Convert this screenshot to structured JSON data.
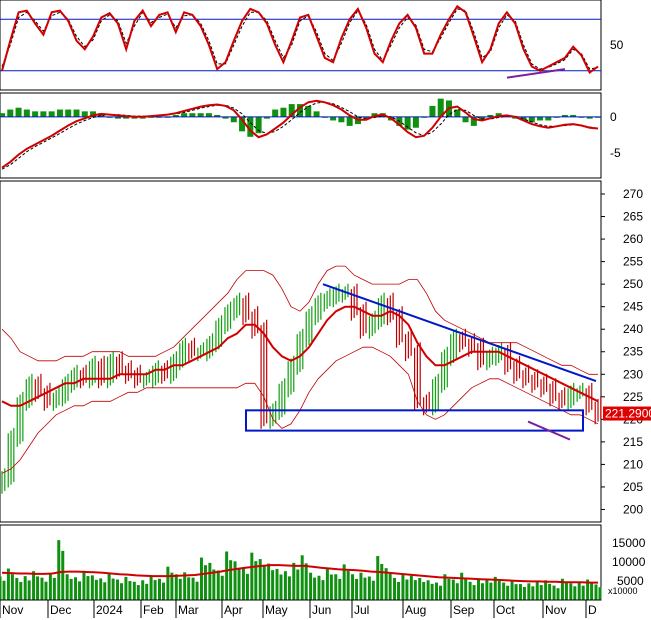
{
  "chart_data": {
    "type": "stock-chart",
    "colors": {
      "price_up": "#10a010",
      "price_down": "#c00000",
      "ma": "#d00000",
      "bollinger": "#c00000",
      "trendline": "#0018c8",
      "divergence": "#7a1fa0",
      "volume": "#109010",
      "guide": "#0018c8",
      "price_flag": "#e00000"
    },
    "x_axis": {
      "labels": [
        "Nov",
        "Dec",
        "2024",
        "Feb",
        "Mar",
        "Apr",
        "May",
        "Jun",
        "Jul",
        "Aug",
        "Sep",
        "Oct",
        "Nov",
        "D"
      ]
    },
    "panels": {
      "oscillator": {
        "tick_labels": [
          "50"
        ],
        "levels": [
          80,
          20
        ],
        "ylim": [
          0,
          100
        ],
        "k": [
          20,
          55,
          88,
          90,
          75,
          62,
          88,
          90,
          78,
          55,
          45,
          60,
          82,
          87,
          75,
          45,
          78,
          90,
          72,
          85,
          88,
          65,
          88,
          85,
          72,
          50,
          22,
          30,
          55,
          78,
          92,
          88,
          75,
          50,
          30,
          55,
          82,
          85,
          60,
          35,
          30,
          58,
          80,
          92,
          70,
          40,
          30,
          55,
          75,
          85,
          70,
          40,
          40,
          62,
          80,
          95,
          88,
          60,
          30,
          45,
          75,
          88,
          75,
          45,
          25,
          20,
          25,
          30,
          35,
          48,
          38,
          18,
          25
        ],
        "d": [
          25,
          50,
          82,
          88,
          78,
          66,
          84,
          88,
          80,
          60,
          48,
          56,
          78,
          85,
          78,
          52,
          72,
          88,
          76,
          82,
          86,
          70,
          84,
          85,
          75,
          55,
          28,
          28,
          50,
          72,
          88,
          88,
          78,
          55,
          35,
          50,
          78,
          84,
          65,
          40,
          32,
          52,
          76,
          90,
          74,
          45,
          32,
          50,
          70,
          82,
          73,
          45,
          42,
          58,
          76,
          92,
          90,
          65,
          35,
          42,
          70,
          85,
          78,
          50,
          28,
          22,
          24,
          28,
          33,
          45,
          40,
          22,
          24
        ],
        "divergence": [
          [
            61,
            12
          ],
          [
            68,
            22
          ]
        ]
      },
      "macd": {
        "tick_labels": [
          "0",
          "-5"
        ],
        "ylim": [
          -8,
          3
        ],
        "zero": 0,
        "macd": [
          -7.0,
          -6.2,
          -5.2,
          -4.4,
          -3.8,
          -3.2,
          -2.6,
          -1.9,
          -1.2,
          -0.6,
          -0.2,
          0.2,
          0.4,
          0.3,
          0.2,
          0.1,
          0.0,
          0.0,
          0.1,
          0.2,
          0.3,
          0.5,
          0.8,
          1.1,
          1.4,
          1.6,
          1.7,
          1.5,
          0.9,
          -0.4,
          -1.9,
          -2.8,
          -2.4,
          -1.6,
          -0.8,
          0.3,
          1.3,
          2.0,
          2.2,
          2.0,
          1.6,
          1.0,
          0.2,
          -0.4,
          -0.4,
          0.1,
          0.3,
          -0.2,
          -1.1,
          -2.1,
          -2.8,
          -2.6,
          -1.5,
          0.0,
          1.2,
          1.4,
          0.6,
          -0.3,
          -0.5,
          -0.2,
          0.1,
          0.2,
          0.0,
          -0.5,
          -1.0,
          -1.3,
          -1.5,
          -1.3,
          -1.1,
          -1.0,
          -1.2,
          -1.5,
          -1.6
        ],
        "signal": [
          -7.2,
          -6.6,
          -5.7,
          -4.8,
          -4.1,
          -3.5,
          -2.9,
          -2.3,
          -1.6,
          -1.0,
          -0.5,
          -0.1,
          0.2,
          0.3,
          0.3,
          0.2,
          0.1,
          0.1,
          0.1,
          0.2,
          0.3,
          0.4,
          0.6,
          0.9,
          1.2,
          1.4,
          1.6,
          1.6,
          1.2,
          0.4,
          -0.8,
          -1.9,
          -2.3,
          -2.0,
          -1.3,
          -0.4,
          0.6,
          1.4,
          1.9,
          2.0,
          1.8,
          1.3,
          0.7,
          0.0,
          -0.3,
          -0.1,
          0.1,
          0.0,
          -0.6,
          -1.4,
          -2.2,
          -2.6,
          -2.1,
          -1.0,
          0.3,
          1.0,
          0.9,
          0.2,
          -0.3,
          -0.3,
          -0.1,
          0.1,
          0.1,
          -0.3,
          -0.7,
          -1.1,
          -1.3,
          -1.3,
          -1.2,
          -1.1,
          -1.2,
          -1.4,
          -1.6
        ]
      },
      "price": {
        "tick_labels": [
          "270",
          "265",
          "260",
          "255",
          "250",
          "245",
          "240",
          "235",
          "230",
          "225",
          "220",
          "215",
          "210",
          "205",
          "200"
        ],
        "ylim": [
          197,
          272
        ],
        "last_price": "221.2900",
        "close": [
          207,
          216,
          224,
          228,
          226,
          224,
          225,
          228,
          230,
          229,
          232,
          229,
          233,
          231,
          230,
          229,
          229,
          231,
          230,
          233,
          236,
          235,
          235,
          237,
          241,
          244,
          246,
          243,
          240,
          220,
          222,
          227,
          232,
          238,
          243,
          246,
          247,
          248,
          248,
          244,
          240,
          242,
          246,
          243,
          238,
          235,
          224,
          223,
          228,
          234,
          238,
          237,
          236,
          233,
          234,
          235,
          232,
          230,
          229,
          228,
          227,
          225,
          224,
          226,
          226,
          223,
          221
        ],
        "ma": [
          224,
          223,
          223,
          224,
          225,
          226,
          227,
          228,
          228,
          229,
          229,
          229,
          229,
          230,
          230,
          230,
          230,
          231,
          231,
          232,
          232,
          233,
          234,
          235,
          236,
          238,
          239,
          241,
          241,
          239,
          236,
          234,
          233,
          234,
          236,
          239,
          242,
          244,
          245,
          245,
          244,
          243,
          243,
          244,
          243,
          241,
          237,
          234,
          232,
          232,
          233,
          234,
          235,
          235,
          235,
          235,
          234,
          233,
          232,
          231,
          230,
          229,
          228,
          227,
          226,
          225,
          224
        ],
        "upper": [
          240,
          238,
          235,
          234,
          233,
          233,
          233,
          234,
          234,
          234,
          235,
          235,
          235,
          235,
          234,
          234,
          234,
          234,
          235,
          236,
          238,
          240,
          242,
          244,
          246,
          248,
          251,
          253,
          253,
          253,
          252,
          249,
          245,
          244,
          246,
          250,
          253,
          254,
          254,
          252,
          251,
          250,
          250,
          250,
          250,
          251,
          251,
          248,
          244,
          242,
          241,
          240,
          239,
          238,
          237,
          237,
          237,
          237,
          236,
          235,
          234,
          233,
          232,
          232,
          231,
          230,
          230
        ],
        "lower": [
          208,
          209,
          211,
          214,
          217,
          219,
          221,
          222,
          223,
          223,
          224,
          224,
          224,
          225,
          226,
          226,
          227,
          227,
          227,
          227,
          227,
          227,
          227,
          227,
          227,
          227,
          227,
          228,
          228,
          225,
          220,
          218,
          219,
          222,
          226,
          229,
          231,
          233,
          234,
          235,
          236,
          236,
          235,
          234,
          232,
          230,
          224,
          221,
          220,
          221,
          223,
          225,
          227,
          228,
          229,
          229,
          228,
          227,
          226,
          225,
          224,
          223,
          222,
          221,
          221,
          220,
          219
        ]
      },
      "volume": {
        "tick_labels": [
          "15000",
          "10000",
          "5000"
        ],
        "multiplier": "x10000",
        "ylim": [
          0,
          19000
        ],
        "values": [
          6200,
          8300,
          5800,
          6300,
          7600,
          5900,
          7100,
          15800,
          6800,
          6000,
          7700,
          6500,
          5700,
          6900,
          5400,
          6100,
          4800,
          5200,
          6400,
          5600,
          8800,
          6800,
          7300,
          5900,
          11200,
          9800,
          7800,
          12800,
          10200,
          8400,
          12500,
          10800,
          9600,
          8200,
          7600,
          9800,
          11800,
          7200,
          6400,
          8200,
          6800,
          9400,
          6800,
          7200,
          6200,
          11600,
          8400,
          5800,
          6600,
          6400,
          5800,
          5200,
          4600,
          6800,
          5400,
          7200,
          4800,
          5400,
          5600,
          6100,
          4600,
          5100,
          4200,
          4400,
          4800,
          5200,
          3800,
          5600,
          4400,
          4600,
          5400,
          4100
        ],
        "ma": [
          7200,
          7100,
          7000,
          7000,
          6900,
          6900,
          7000,
          7400,
          7500,
          7500,
          7400,
          7300,
          7200,
          7000,
          6800,
          6700,
          6500,
          6400,
          6300,
          6300,
          6300,
          6400,
          6500,
          6600,
          6900,
          7200,
          7500,
          7900,
          8200,
          8500,
          8800,
          9000,
          9200,
          9200,
          9100,
          9000,
          9000,
          8800,
          8500,
          8300,
          8100,
          8000,
          7900,
          7700,
          7500,
          7400,
          7200,
          7000,
          6800,
          6600,
          6400,
          6200,
          6000,
          5900,
          5800,
          5700,
          5600,
          5500,
          5400,
          5300,
          5200,
          5100,
          5000,
          4900,
          4900,
          4800,
          4800,
          4700,
          4700,
          4700,
          4600,
          4600
        ]
      }
    }
  }
}
